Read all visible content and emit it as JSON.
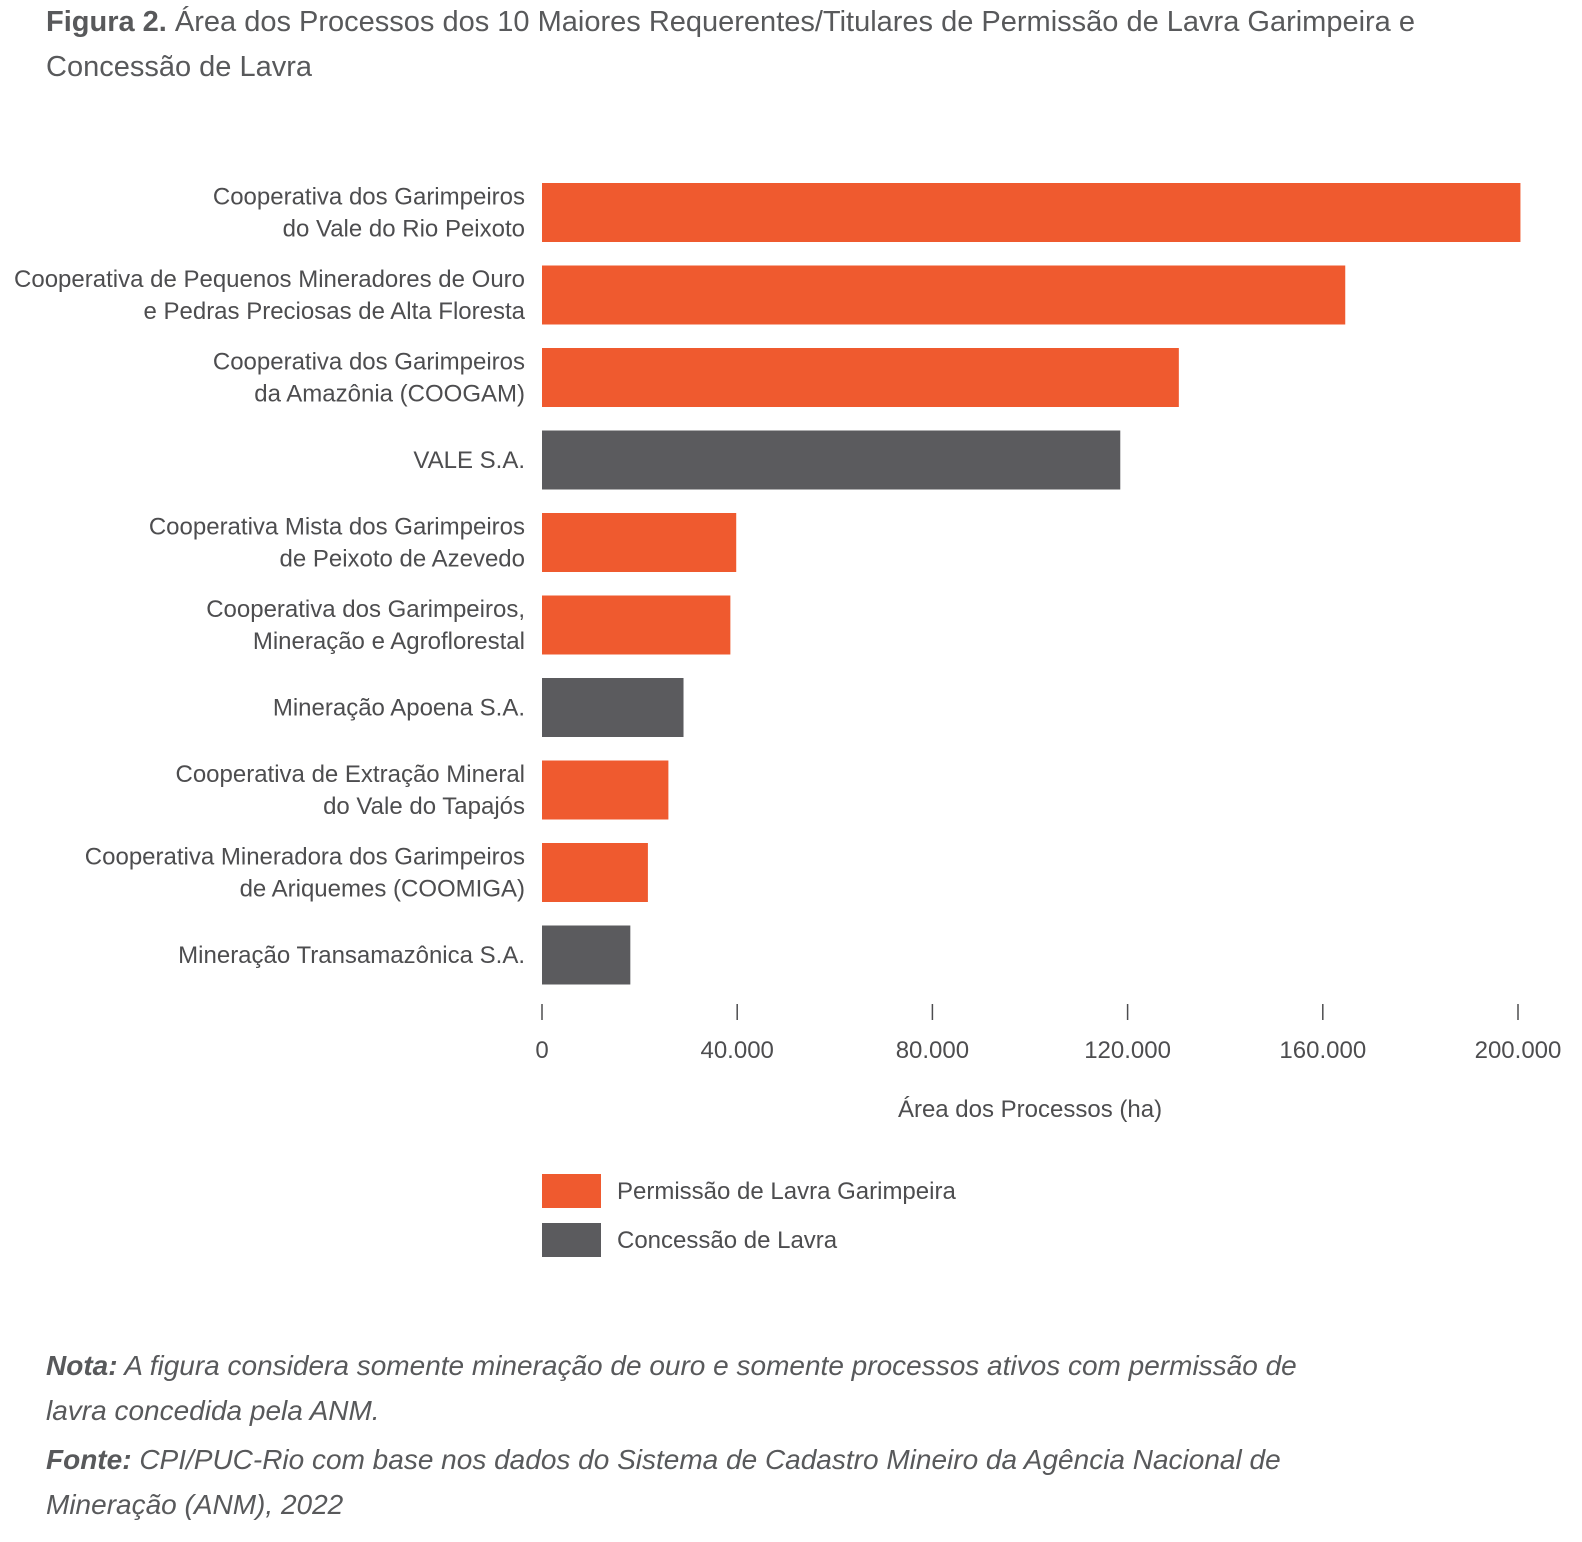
{
  "figure": {
    "number": "Figura 2.",
    "title": "Área dos Processos dos 10 Maiores Requerentes/Titulares de Permissão de Lavra Garimpeira e Concessão de Lavra"
  },
  "chart_data": {
    "type": "bar",
    "orientation": "horizontal",
    "categories": [
      [
        "Cooperativa dos Garimpeiros",
        "do Vale do Rio Peixoto"
      ],
      [
        "Cooperativa de Pequenos Mineradores de Ouro",
        "e Pedras Preciosas de Alta Floresta"
      ],
      [
        "Cooperativa dos Garimpeiros",
        "da Amazônia (COOGAM)"
      ],
      [
        "VALE S.A."
      ],
      [
        "Cooperativa Mista dos Garimpeiros",
        "de Peixoto de Azevedo"
      ],
      [
        "Cooperativa dos Garimpeiros,",
        "Mineração e Agroflorestal"
      ],
      [
        "Mineração Apoena S.A."
      ],
      [
        "Cooperativa de Extração Mineral",
        "do Vale do Tapajós"
      ],
      [
        "Cooperativa Mineradora dos Garimpeiros",
        "de Ariquemes (COOMIGA)"
      ],
      [
        "Mineração Transamazônica S.A."
      ]
    ],
    "values": [
      200500,
      164600,
      130500,
      118500,
      39800,
      38600,
      29000,
      25900,
      21700,
      18100
    ],
    "series_index": [
      0,
      0,
      0,
      1,
      0,
      0,
      1,
      0,
      0,
      1
    ],
    "series": [
      {
        "name": "Permissão de Lavra Garimpeira",
        "color": "#ef5a2f"
      },
      {
        "name": "Concessão de Lavra",
        "color": "#5b5b5e"
      }
    ],
    "xlabel": "Área dos Processos (ha)",
    "xlim": [
      0,
      200000
    ],
    "ticks": [
      0,
      40000,
      80000,
      120000,
      160000,
      200000
    ],
    "tick_labels": [
      "0",
      "40.000",
      "80.000",
      "120.000",
      "160.000",
      "200.000"
    ],
    "grid": false,
    "legend_position": "bottom"
  },
  "notes": {
    "nota_lead": "Nota:",
    "nota_text": "A figura considera somente mineração de ouro e somente processos ativos com permissão de lavra concedida pela ANM.",
    "fonte_lead": "Fonte:",
    "fonte_text": "CPI/PUC-Rio com base nos dados do Sistema de Cadastro Mineiro da Agência Nacional de Mineração (ANM), 2022"
  }
}
